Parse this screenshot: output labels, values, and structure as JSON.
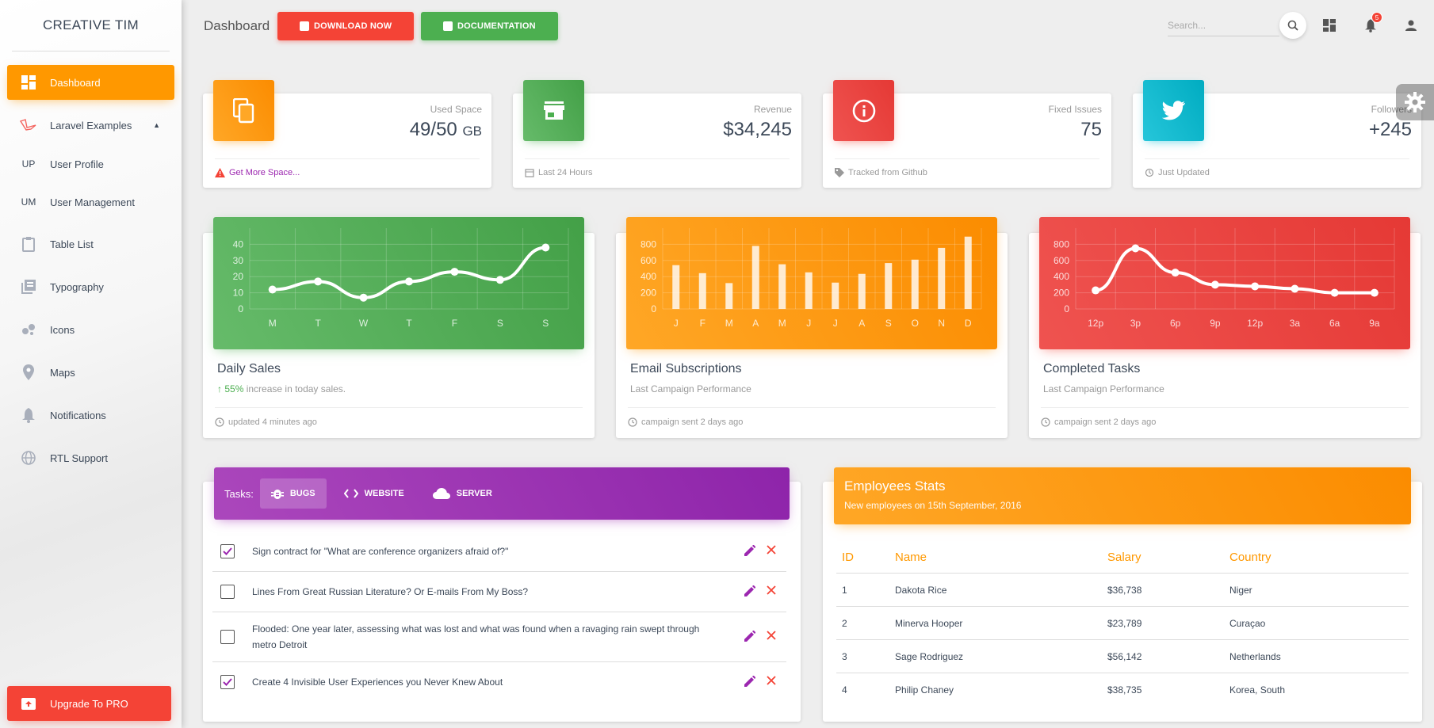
{
  "sidebar": {
    "logo": "CREATIVE TIM",
    "items": [
      {
        "label": "Dashboard",
        "icon": "dashboard-icon"
      },
      {
        "label": "Laravel Examples",
        "icon": "laravel-icon"
      },
      {
        "label": "User Profile",
        "abbr": "UP"
      },
      {
        "label": "User Management",
        "abbr": "UM"
      },
      {
        "label": "Table List",
        "icon": "clipboard-icon"
      },
      {
        "label": "Typography",
        "icon": "library-books-icon"
      },
      {
        "label": "Icons",
        "icon": "bubble-chart-icon"
      },
      {
        "label": "Maps",
        "icon": "location-icon"
      },
      {
        "label": "Notifications",
        "icon": "bell-icon"
      },
      {
        "label": "RTL Support",
        "icon": "language-icon"
      }
    ],
    "upgrade": "Upgrade To PRO"
  },
  "topbar": {
    "brand": "Dashboard",
    "download": "DOWNLOAD NOW",
    "documentation": "DOCUMENTATION",
    "search_placeholder": "Search...",
    "notifications_count": "5"
  },
  "stats": [
    {
      "category": "Used Space",
      "value": "49/50",
      "unit": "GB",
      "footer": "Get More Space...",
      "color": "#ff9800"
    },
    {
      "category": "Revenue",
      "value": "$34,245",
      "unit": "",
      "footer": "Last 24 Hours",
      "color": "#4caf50"
    },
    {
      "category": "Fixed Issues",
      "value": "75",
      "unit": "",
      "footer": "Tracked from Github",
      "color": "#f44336"
    },
    {
      "category": "Followers",
      "value": "+245",
      "unit": "",
      "footer": "Just Updated",
      "color": "#00bcd4"
    }
  ],
  "charts": [
    {
      "title": "Daily Sales",
      "subtitle_pct": "55%",
      "subtitle": " increase in today sales.",
      "footer": "updated 4 minutes ago"
    },
    {
      "title": "Email Subscriptions",
      "subtitle": "Last Campaign Performance",
      "footer": "campaign sent 2 days ago"
    },
    {
      "title": "Completed Tasks",
      "subtitle": "Last Campaign Performance",
      "footer": "campaign sent 2 days ago"
    }
  ],
  "chart_data": [
    {
      "type": "line",
      "categories": [
        "M",
        "T",
        "W",
        "T",
        "F",
        "S",
        "S"
      ],
      "values": [
        12,
        17,
        7,
        17,
        23,
        18,
        38
      ],
      "yticks": [
        0,
        10,
        20,
        30,
        40
      ],
      "ylim": [
        0,
        50
      ],
      "grid": true
    },
    {
      "type": "bar",
      "categories": [
        "J",
        "F",
        "M",
        "A",
        "M",
        "J",
        "J",
        "A",
        "S",
        "O",
        "N",
        "D"
      ],
      "values": [
        542,
        443,
        320,
        780,
        553,
        453,
        326,
        434,
        568,
        610,
        756,
        895
      ],
      "yticks": [
        0,
        200,
        400,
        600,
        800
      ],
      "ylim": [
        0,
        1000
      ],
      "grid": true
    },
    {
      "type": "line",
      "categories": [
        "12p",
        "3p",
        "6p",
        "9p",
        "12p",
        "3a",
        "6a",
        "9a"
      ],
      "values": [
        230,
        750,
        450,
        300,
        280,
        250,
        200,
        200
      ],
      "yticks": [
        0,
        200,
        400,
        600,
        800
      ],
      "ylim": [
        0,
        1000
      ],
      "grid": true
    }
  ],
  "tasks": {
    "label": "Tasks:",
    "tabs": [
      "BUGS",
      "WEBSITE",
      "SERVER"
    ],
    "items": [
      {
        "text": "Sign contract for \"What are conference organizers afraid of?\"",
        "checked": true
      },
      {
        "text": "Lines From Great Russian Literature? Or E-mails From My Boss?",
        "checked": false
      },
      {
        "text": "Flooded: One year later, assessing what was lost and what was found when a ravaging rain swept through metro Detroit",
        "checked": false
      },
      {
        "text": "Create 4 Invisible User Experiences you Never Knew About",
        "checked": true
      }
    ]
  },
  "employees": {
    "title": "Employees Stats",
    "subtitle": "New employees on 15th September, 2016",
    "headers": [
      "ID",
      "Name",
      "Salary",
      "Country"
    ],
    "rows": [
      [
        "1",
        "Dakota Rice",
        "$36,738",
        "Niger"
      ],
      [
        "2",
        "Minerva Hooper",
        "$23,789",
        "Curaçao"
      ],
      [
        "3",
        "Sage Rodriguez",
        "$56,142",
        "Netherlands"
      ],
      [
        "4",
        "Philip Chaney",
        "$38,735",
        "Korea, South"
      ]
    ]
  },
  "colors": {
    "orange": "#ff9800",
    "green": "#4caf50",
    "red": "#f44336",
    "cyan": "#00bcd4",
    "purple": "#9c27b0"
  }
}
